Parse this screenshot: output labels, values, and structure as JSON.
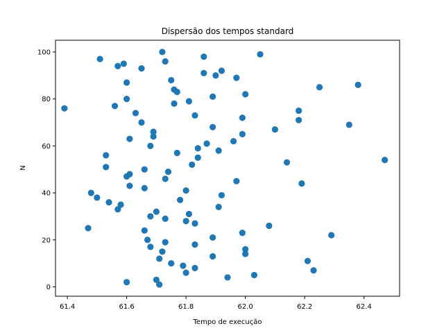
{
  "chart_data": {
    "type": "scatter",
    "title": "Dispersão dos tempos standard",
    "xlabel": "Tempo de execução",
    "ylabel": "N",
    "xlim": [
      61.36,
      62.52
    ],
    "ylim": [
      -4,
      105
    ],
    "xticks": [
      61.4,
      61.6,
      61.8,
      62.0,
      62.2,
      62.4
    ],
    "xtick_labels": [
      "61.4",
      "61.6",
      "61.8",
      "62.0",
      "62.2",
      "62.4"
    ],
    "yticks": [
      0,
      20,
      40,
      60,
      80,
      100
    ],
    "ytick_labels": [
      "0",
      "20",
      "40",
      "60",
      "80",
      "100"
    ],
    "grid": false,
    "color": "#1f77b4",
    "points": [
      {
        "x": 61.39,
        "y": 76
      },
      {
        "x": 61.47,
        "y": 25
      },
      {
        "x": 61.48,
        "y": 40
      },
      {
        "x": 61.5,
        "y": 38
      },
      {
        "x": 61.51,
        "y": 97
      },
      {
        "x": 61.53,
        "y": 56
      },
      {
        "x": 61.53,
        "y": 51
      },
      {
        "x": 61.54,
        "y": 36
      },
      {
        "x": 61.56,
        "y": 77
      },
      {
        "x": 61.57,
        "y": 33
      },
      {
        "x": 61.57,
        "y": 94
      },
      {
        "x": 61.58,
        "y": 35
      },
      {
        "x": 61.59,
        "y": 95
      },
      {
        "x": 61.6,
        "y": 87
      },
      {
        "x": 61.6,
        "y": 80
      },
      {
        "x": 61.6,
        "y": 47
      },
      {
        "x": 61.6,
        "y": 2
      },
      {
        "x": 61.61,
        "y": 63
      },
      {
        "x": 61.61,
        "y": 48
      },
      {
        "x": 61.61,
        "y": 43
      },
      {
        "x": 61.63,
        "y": 74
      },
      {
        "x": 61.65,
        "y": 93
      },
      {
        "x": 61.65,
        "y": 70
      },
      {
        "x": 61.66,
        "y": 50
      },
      {
        "x": 61.66,
        "y": 42
      },
      {
        "x": 61.66,
        "y": 24
      },
      {
        "x": 61.67,
        "y": 20
      },
      {
        "x": 61.68,
        "y": 60
      },
      {
        "x": 61.68,
        "y": 30
      },
      {
        "x": 61.68,
        "y": 17
      },
      {
        "x": 61.69,
        "y": 66
      },
      {
        "x": 61.69,
        "y": 64
      },
      {
        "x": 61.7,
        "y": 32
      },
      {
        "x": 61.7,
        "y": 3
      },
      {
        "x": 61.71,
        "y": 12
      },
      {
        "x": 61.71,
        "y": 1
      },
      {
        "x": 61.72,
        "y": 100
      },
      {
        "x": 61.72,
        "y": 15
      },
      {
        "x": 61.73,
        "y": 96
      },
      {
        "x": 61.73,
        "y": 46
      },
      {
        "x": 61.73,
        "y": 29
      },
      {
        "x": 61.73,
        "y": 19
      },
      {
        "x": 61.74,
        "y": 49
      },
      {
        "x": 61.75,
        "y": 88
      },
      {
        "x": 61.75,
        "y": 10
      },
      {
        "x": 61.76,
        "y": 84
      },
      {
        "x": 61.76,
        "y": 78
      },
      {
        "x": 61.77,
        "y": 83
      },
      {
        "x": 61.77,
        "y": 57
      },
      {
        "x": 61.78,
        "y": 37
      },
      {
        "x": 61.79,
        "y": 9
      },
      {
        "x": 61.8,
        "y": 41
      },
      {
        "x": 61.8,
        "y": 28
      },
      {
        "x": 61.8,
        "y": 6
      },
      {
        "x": 61.81,
        "y": 79
      },
      {
        "x": 61.81,
        "y": 31
      },
      {
        "x": 61.82,
        "y": 52
      },
      {
        "x": 61.83,
        "y": 73
      },
      {
        "x": 61.83,
        "y": 27
      },
      {
        "x": 61.83,
        "y": 18
      },
      {
        "x": 61.83,
        "y": 8
      },
      {
        "x": 61.84,
        "y": 59
      },
      {
        "x": 61.84,
        "y": 55
      },
      {
        "x": 61.86,
        "y": 98
      },
      {
        "x": 61.86,
        "y": 91
      },
      {
        "x": 61.87,
        "y": 61
      },
      {
        "x": 61.89,
        "y": 81
      },
      {
        "x": 61.89,
        "y": 68
      },
      {
        "x": 61.89,
        "y": 21
      },
      {
        "x": 61.89,
        "y": 13
      },
      {
        "x": 61.9,
        "y": 90
      },
      {
        "x": 61.91,
        "y": 58
      },
      {
        "x": 61.91,
        "y": 34
      },
      {
        "x": 61.92,
        "y": 92
      },
      {
        "x": 61.92,
        "y": 39
      },
      {
        "x": 61.94,
        "y": 4
      },
      {
        "x": 61.96,
        "y": 62
      },
      {
        "x": 61.97,
        "y": 89
      },
      {
        "x": 61.97,
        "y": 45
      },
      {
        "x": 61.99,
        "y": 72
      },
      {
        "x": 61.99,
        "y": 65
      },
      {
        "x": 61.99,
        "y": 23
      },
      {
        "x": 62.0,
        "y": 82
      },
      {
        "x": 62.0,
        "y": 16
      },
      {
        "x": 62.0,
        "y": 14
      },
      {
        "x": 62.03,
        "y": 5
      },
      {
        "x": 62.05,
        "y": 99
      },
      {
        "x": 62.08,
        "y": 26
      },
      {
        "x": 62.1,
        "y": 67
      },
      {
        "x": 62.14,
        "y": 53
      },
      {
        "x": 62.18,
        "y": 75
      },
      {
        "x": 62.18,
        "y": 71
      },
      {
        "x": 62.19,
        "y": 44
      },
      {
        "x": 62.21,
        "y": 11
      },
      {
        "x": 62.23,
        "y": 7
      },
      {
        "x": 62.25,
        "y": 85
      },
      {
        "x": 62.29,
        "y": 22
      },
      {
        "x": 62.35,
        "y": 69
      },
      {
        "x": 62.38,
        "y": 86
      },
      {
        "x": 62.47,
        "y": 54
      }
    ]
  }
}
